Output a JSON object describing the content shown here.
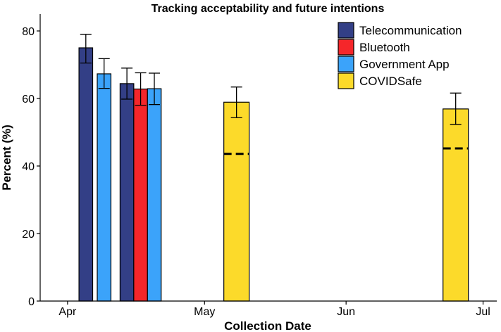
{
  "chart_data": {
    "type": "bar",
    "title": "Tracking acceptability and future intentions",
    "xlabel": "Collection Date",
    "ylabel": "Percent (%)",
    "ylim": [
      0,
      85
    ],
    "y_ticks": [
      0,
      20,
      40,
      60,
      80
    ],
    "x_ticks": [
      {
        "label": "Apr",
        "date": "2020-04-01"
      },
      {
        "label": "May",
        "date": "2020-05-01"
      },
      {
        "label": "Jun",
        "date": "2020-06-01"
      },
      {
        "label": "Jul",
        "date": "2020-07-01"
      }
    ],
    "xlim": [
      "2020-03-26",
      "2020-07-04"
    ],
    "legend_position": "top-right",
    "grid": false,
    "series": [
      {
        "name": "Telecommunication",
        "color": "#333f86"
      },
      {
        "name": "Bluetooth",
        "color": "#f5262a"
      },
      {
        "name": "Government App",
        "color": "#3ba3fa"
      },
      {
        "name": "COVIDSafe",
        "color": "#fcda2a"
      }
    ],
    "bars": [
      {
        "series": "Telecommunication",
        "date": "2020-04-05",
        "value": 75,
        "err_low": 70.5,
        "err_high": 79
      },
      {
        "series": "Government App",
        "date": "2020-04-09",
        "value": 67.3,
        "err_low": 63,
        "err_high": 71.8
      },
      {
        "series": "Telecommunication",
        "date": "2020-04-14",
        "value": 64.4,
        "err_low": 59.8,
        "err_high": 69
      },
      {
        "series": "Bluetooth",
        "date": "2020-04-17",
        "value": 62.8,
        "err_low": 58,
        "err_high": 67.6
      },
      {
        "series": "Government App",
        "date": "2020-04-20",
        "value": 62.9,
        "err_low": 58.2,
        "err_high": 67.5
      },
      {
        "series": "COVIDSafe",
        "date": "2020-05-08",
        "value": 58.9,
        "err_low": 54.3,
        "err_high": 63.4,
        "dashed_line": 43.6
      },
      {
        "series": "COVIDSafe",
        "date": "2020-06-25",
        "value": 56.9,
        "err_low": 52.3,
        "err_high": 61.6,
        "dashed_line": 45.2
      }
    ]
  }
}
